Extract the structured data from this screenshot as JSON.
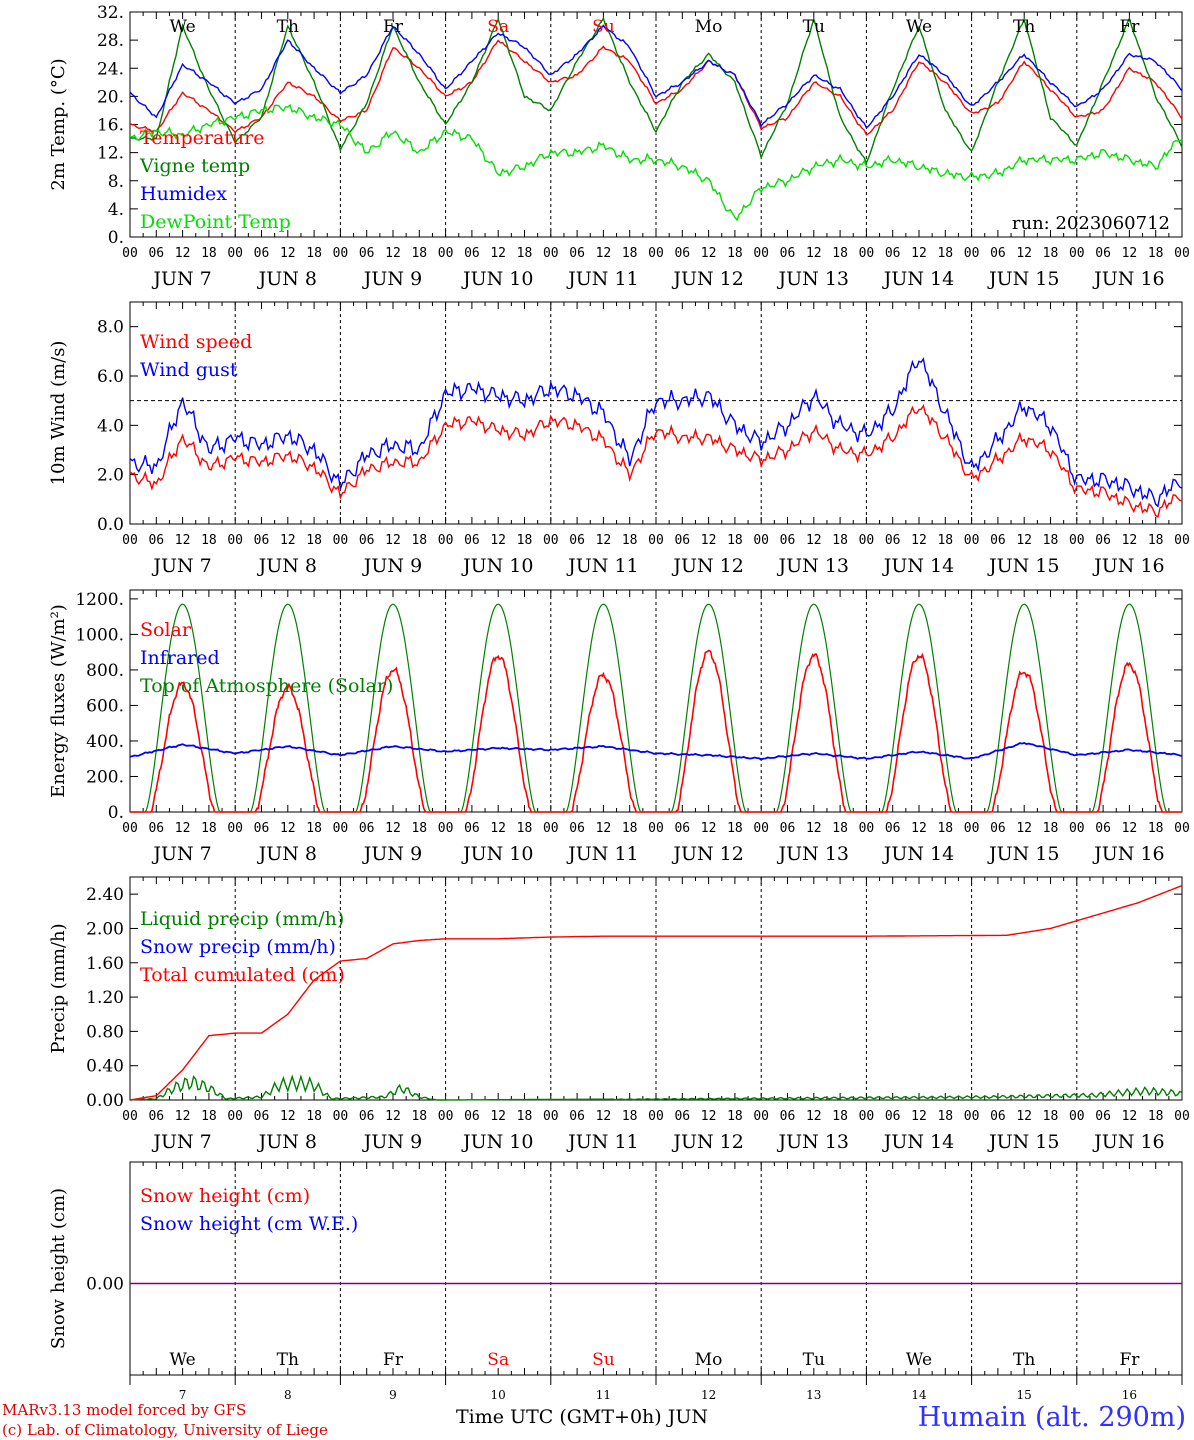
{
  "chart_data": [
    {
      "type": "line",
      "ylabel": "2m Temp. (°C)",
      "ylim": [
        0,
        32
      ],
      "yticks": [
        "0.",
        "4.",
        "8.",
        "12.",
        "16.",
        "20.",
        "24.",
        "28.",
        "32."
      ],
      "run_label": "run: 2023060712",
      "weekdays": [
        "We",
        "Th",
        "Fr",
        "Sa",
        "Su",
        "Mo",
        "Tu",
        "We",
        "Th",
        "Fr"
      ],
      "weekend_color": "#ff0000",
      "x_unit": "hours since 2023-06-07 00 UTC",
      "series": [
        {
          "name": "Temperature",
          "color": "#ff0000",
          "x": [
            0,
            6,
            12,
            18,
            24,
            30,
            36,
            42,
            48,
            54,
            60,
            66,
            72,
            78,
            84,
            90,
            96,
            102,
            108,
            114,
            120,
            126,
            132,
            138,
            144,
            150,
            156,
            162,
            168,
            174,
            180,
            186,
            192,
            198,
            204,
            210,
            216,
            222,
            228,
            234,
            240
          ],
          "values": [
            16,
            15,
            20.5,
            18,
            15,
            17,
            22,
            20,
            16.5,
            18,
            27,
            24,
            20,
            22,
            28,
            25,
            22,
            23,
            27,
            25,
            19,
            21,
            25,
            23,
            15.5,
            17,
            22,
            20,
            14.5,
            18,
            25,
            22,
            17.5,
            19,
            25,
            21,
            17,
            18,
            24,
            22,
            17
          ]
        },
        {
          "name": "Vigne temp",
          "color": "#008000",
          "x": [
            0,
            6,
            12,
            18,
            24,
            30,
            36,
            42,
            48,
            54,
            60,
            66,
            72,
            78,
            84,
            90,
            96,
            102,
            108,
            114,
            120,
            126,
            132,
            138,
            144,
            150,
            156,
            162,
            168,
            174,
            180,
            186,
            192,
            198,
            204,
            210,
            216,
            222,
            228,
            234,
            240
          ],
          "values": [
            14,
            14,
            30,
            21,
            13.5,
            17,
            30,
            22,
            12.5,
            19,
            30,
            22,
            16,
            22,
            31,
            20,
            18,
            25,
            31,
            22,
            15,
            22,
            26,
            22,
            11.5,
            19,
            31,
            17,
            10.5,
            21,
            30,
            18,
            12,
            22,
            31,
            17,
            13,
            22,
            31,
            20,
            13
          ]
        },
        {
          "name": "Humidex",
          "color": "#0000ff",
          "x": [
            0,
            6,
            12,
            18,
            24,
            30,
            36,
            42,
            48,
            54,
            60,
            66,
            72,
            78,
            84,
            90,
            96,
            102,
            108,
            114,
            120,
            126,
            132,
            138,
            144,
            150,
            156,
            162,
            168,
            174,
            180,
            186,
            192,
            198,
            204,
            210,
            216,
            222,
            228,
            234,
            240
          ],
          "values": [
            20.5,
            17,
            24.5,
            22,
            19,
            21,
            28,
            24,
            20.5,
            23,
            30,
            26,
            21,
            25,
            29,
            27,
            23,
            26,
            30,
            27,
            20,
            22,
            25,
            23,
            16,
            19,
            23,
            21,
            15.5,
            20,
            26,
            23,
            18.5,
            22,
            26,
            22,
            18.5,
            21,
            26,
            25,
            21
          ]
        },
        {
          "name": "DewPoint Temp",
          "color": "#00e000",
          "x": [
            0,
            6,
            12,
            18,
            24,
            30,
            36,
            42,
            48,
            54,
            60,
            66,
            72,
            78,
            84,
            90,
            96,
            102,
            108,
            114,
            120,
            126,
            132,
            138,
            144,
            150,
            156,
            162,
            168,
            174,
            180,
            186,
            192,
            198,
            204,
            210,
            216,
            222,
            228,
            234,
            240
          ],
          "values": [
            14,
            15,
            14.5,
            16,
            17,
            18,
            18.5,
            17,
            16,
            12,
            15,
            12,
            15,
            14,
            9,
            10,
            12,
            12,
            13,
            11,
            11,
            10,
            8,
            2.5,
            7,
            8,
            10,
            11,
            10,
            11,
            10,
            9,
            8.5,
            9,
            11,
            11,
            11,
            12,
            11,
            10,
            14.5
          ]
        }
      ]
    },
    {
      "type": "line",
      "ylabel": "10m Wind (m/s)",
      "ylim": [
        0,
        9
      ],
      "yticks": [
        "0.0",
        "2.0",
        "4.0",
        "6.0",
        "8.0"
      ],
      "ref_line": 5,
      "series": [
        {
          "name": "Wind speed",
          "color": "#ff0000",
          "x": [
            0,
            6,
            12,
            18,
            24,
            30,
            36,
            42,
            48,
            54,
            60,
            66,
            72,
            78,
            84,
            90,
            96,
            102,
            108,
            114,
            120,
            126,
            132,
            138,
            144,
            150,
            156,
            162,
            168,
            174,
            180,
            186,
            192,
            198,
            204,
            210,
            216,
            222,
            228,
            234,
            240
          ],
          "values": [
            2,
            1.6,
            3.5,
            2.3,
            2.7,
            2.5,
            2.8,
            2.3,
            1.2,
            2.2,
            2.5,
            2.5,
            4,
            4.2,
            3.8,
            3.6,
            4.2,
            4,
            3.4,
            2,
            3.8,
            3.5,
            3.5,
            3,
            2.6,
            3,
            3.8,
            3,
            2.8,
            3.5,
            4.8,
            3.5,
            1.8,
            2.6,
            3.5,
            3,
            1.4,
            1.3,
            0.8,
            0.5,
            1.2
          ]
        },
        {
          "name": "Wind gust",
          "color": "#0000ff",
          "x": [
            0,
            6,
            12,
            18,
            24,
            30,
            36,
            42,
            48,
            54,
            60,
            66,
            72,
            78,
            84,
            90,
            96,
            102,
            108,
            114,
            120,
            126,
            132,
            138,
            144,
            150,
            156,
            162,
            168,
            174,
            180,
            186,
            192,
            198,
            204,
            210,
            216,
            222,
            228,
            234,
            240
          ],
          "values": [
            2.5,
            2.3,
            5,
            3,
            3.5,
            3.2,
            3.6,
            3,
            1.6,
            2.8,
            3.2,
            3,
            5.3,
            5.5,
            5.2,
            5,
            5.5,
            5.2,
            4.5,
            2.6,
            5,
            5,
            5.2,
            4,
            3.3,
            4,
            5.2,
            4,
            3.6,
            4.6,
            6.8,
            4.5,
            2.2,
            3.4,
            4.8,
            4,
            1.8,
            1.8,
            1.5,
            1,
            1.8
          ]
        }
      ]
    },
    {
      "type": "line",
      "ylabel": "Energy fluxes (W/m²)",
      "ylim": [
        0,
        1250
      ],
      "yticks": [
        "0.",
        "200.",
        "400.",
        "600.",
        "800.",
        "1000.",
        "1200."
      ],
      "day_peaks": {
        "Solar": [
          720,
          700,
          800,
          880,
          770,
          900,
          880,
          880,
          790,
          830
        ],
        "Top of Atmosphere (Solar)": [
          1170,
          1170,
          1170,
          1170,
          1170,
          1170,
          1170,
          1170,
          1170,
          1170
        ]
      },
      "series": [
        {
          "name": "Solar",
          "color": "#ff0000"
        },
        {
          "name": "Infrared",
          "color": "#0000ff",
          "x": [
            0,
            12,
            24,
            36,
            48,
            60,
            72,
            84,
            96,
            108,
            120,
            132,
            144,
            156,
            168,
            180,
            192,
            204,
            216,
            228,
            240
          ],
          "values": [
            310,
            380,
            330,
            370,
            320,
            370,
            340,
            360,
            350,
            370,
            330,
            320,
            300,
            330,
            300,
            340,
            300,
            390,
            320,
            350,
            320
          ]
        },
        {
          "name": "Top of Atmosphere (Solar)",
          "color": "#008000"
        }
      ]
    },
    {
      "type": "line",
      "ylabel": "Precip (mm/h)",
      "ylim": [
        0,
        2.6
      ],
      "yticks": [
        "0.00",
        "0.40",
        "0.80",
        "1.20",
        "1.60",
        "2.00",
        "2.40"
      ],
      "series": [
        {
          "name": "Liquid precip (mm/h)",
          "color": "#008000",
          "x": [
            0,
            6,
            10,
            14,
            18,
            22,
            30,
            34,
            38,
            42,
            46,
            58,
            62,
            66,
            70,
            110,
            196,
            220,
            226,
            232,
            238,
            240
          ],
          "values": [
            0,
            0.02,
            0.2,
            0.3,
            0.2,
            0.02,
            0.05,
            0.25,
            0.28,
            0.25,
            0.02,
            0.05,
            0.2,
            0.05,
            0,
            0.01,
            0.05,
            0.08,
            0.12,
            0.15,
            0.12,
            0.1
          ]
        },
        {
          "name": "Snow precip (mm/h)",
          "color": "#0000ff"
        },
        {
          "name": "Total cumulated (cm)",
          "color": "#ff0000",
          "x": [
            0,
            6,
            12,
            18,
            24,
            30,
            36,
            42,
            48,
            54,
            60,
            66,
            72,
            84,
            96,
            108,
            120,
            168,
            200,
            210,
            220,
            230,
            240
          ],
          "values": [
            0,
            0.05,
            0.35,
            0.75,
            0.78,
            0.78,
            1.0,
            1.4,
            1.62,
            1.65,
            1.82,
            1.86,
            1.88,
            1.88,
            1.9,
            1.91,
            1.91,
            1.91,
            1.92,
            2.0,
            2.15,
            2.3,
            2.5
          ]
        }
      ]
    },
    {
      "type": "line",
      "ylabel": "Snow height (cm)",
      "yticks": [
        "0.00"
      ],
      "days": [
        "7",
        "8",
        "9",
        "10",
        "11",
        "12",
        "13",
        "14",
        "15",
        "16"
      ],
      "weekdays": [
        "We",
        "Th",
        "Fr",
        "Sa",
        "Su",
        "Mo",
        "Tu",
        "We",
        "Th",
        "Fr"
      ],
      "series": [
        {
          "name": "Snow height (cm)",
          "color": "#ff0000",
          "x": [
            0,
            240
          ],
          "values": [
            0,
            0
          ]
        },
        {
          "name": "Snow height (cm W.E.)",
          "color": "#0000ff",
          "x": [
            0,
            240
          ],
          "values": [
            0,
            0
          ]
        }
      ]
    }
  ],
  "x_axis": {
    "hour_labels": [
      "00",
      "06",
      "12",
      "18"
    ],
    "final_label": "00",
    "date_labels": [
      "JUN  7",
      "JUN  8",
      "JUN  9",
      "JUN 10",
      "JUN 11",
      "JUN 12",
      "JUN 13",
      "JUN 14",
      "JUN 15",
      "JUN 16"
    ],
    "title": "Time UTC (GMT+0h) JUN"
  },
  "credits": {
    "line1": "MARv3.13 model forced by GFS",
    "line2": "(c) Lab. of Climatology, University of Liege"
  },
  "station": "Humain (alt. 290m)"
}
